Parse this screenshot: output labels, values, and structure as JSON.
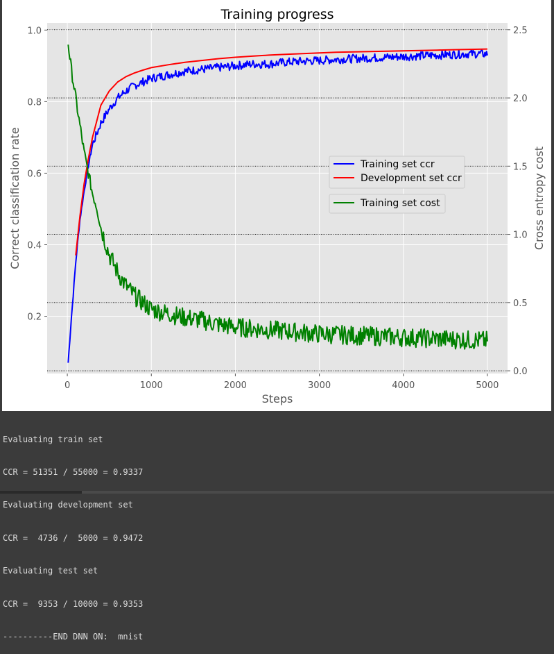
{
  "chart_data": {
    "type": "line",
    "title": "Training progress",
    "xlabel": "Steps",
    "ylabel_left": "Correct classification rate",
    "ylabel_right": "Cross entropy cost",
    "xlim": [
      -240,
      5240
    ],
    "ylim_left": [
      0.04,
      1.02
    ],
    "ylim_right": [
      -0.02,
      2.55
    ],
    "x_ticks": [
      0,
      1000,
      2000,
      3000,
      4000,
      5000
    ],
    "x_tick_labels": [
      "0",
      "1000",
      "2000",
      "3000",
      "4000",
      "5000"
    ],
    "y_left_ticks": [
      0.2,
      0.4,
      0.6,
      0.8,
      1.0
    ],
    "y_left_tick_labels": [
      "0.2",
      "0.4",
      "0.6",
      "0.8",
      "1.0"
    ],
    "y_right_ticks": [
      0.0,
      0.5,
      1.0,
      1.5,
      2.0,
      2.5
    ],
    "y_right_tick_labels": [
      "0.0",
      "0.5",
      "1.0",
      "1.5",
      "2.0",
      "2.5"
    ],
    "grid": true,
    "right_axis_dotted_grid": true,
    "legend_placement": "center-right",
    "series": [
      {
        "name": "Training set ccr",
        "axis": "left",
        "color": "#0000ff",
        "x": [
          10,
          50,
          100,
          150,
          200,
          250,
          300,
          400,
          500,
          600,
          700,
          800,
          900,
          1000,
          1200,
          1400,
          1600,
          1800,
          2000,
          2200,
          2400,
          2600,
          2800,
          3000,
          3200,
          3400,
          3600,
          3800,
          4000,
          4200,
          4400,
          4600,
          4800,
          5000
        ],
        "y": [
          0.07,
          0.2,
          0.35,
          0.47,
          0.55,
          0.62,
          0.68,
          0.74,
          0.78,
          0.81,
          0.83,
          0.845,
          0.855,
          0.865,
          0.875,
          0.885,
          0.89,
          0.895,
          0.9,
          0.905,
          0.905,
          0.91,
          0.913,
          0.915,
          0.918,
          0.92,
          0.922,
          0.924,
          0.926,
          0.928,
          0.93,
          0.932,
          0.934,
          0.933
        ]
      },
      {
        "name": "Development set ccr",
        "axis": "left",
        "color": "#ff0000",
        "x": [
          100,
          150,
          200,
          250,
          300,
          400,
          500,
          600,
          700,
          800,
          900,
          1000,
          1200,
          1400,
          1600,
          1800,
          2000,
          2200,
          2400,
          2600,
          2800,
          3000,
          3200,
          3400,
          3600,
          3800,
          4000,
          4200,
          4400,
          4600,
          4800,
          5000
        ],
        "y": [
          0.37,
          0.48,
          0.57,
          0.64,
          0.7,
          0.79,
          0.83,
          0.855,
          0.87,
          0.88,
          0.888,
          0.895,
          0.903,
          0.91,
          0.915,
          0.92,
          0.924,
          0.927,
          0.93,
          0.932,
          0.934,
          0.936,
          0.938,
          0.939,
          0.94,
          0.941,
          0.942,
          0.943,
          0.944,
          0.945,
          0.946,
          0.947
        ]
      },
      {
        "name": "Training set cost",
        "axis": "right",
        "color": "#008000",
        "x": [
          10,
          50,
          100,
          150,
          200,
          250,
          300,
          350,
          400,
          500,
          600,
          700,
          800,
          900,
          1000,
          1200,
          1400,
          1600,
          1800,
          2000,
          2200,
          2400,
          2600,
          2800,
          3000,
          3200,
          3400,
          3600,
          3800,
          4000,
          4200,
          4400,
          4600,
          4800,
          5000
        ],
        "y": [
          2.4,
          2.2,
          2.0,
          1.8,
          1.6,
          1.45,
          1.3,
          1.2,
          1.05,
          0.85,
          0.72,
          0.62,
          0.55,
          0.5,
          0.45,
          0.42,
          0.39,
          0.37,
          0.34,
          0.32,
          0.31,
          0.3,
          0.29,
          0.28,
          0.27,
          0.265,
          0.26,
          0.255,
          0.25,
          0.245,
          0.24,
          0.235,
          0.23,
          0.225,
          0.22
        ]
      }
    ]
  },
  "console": {
    "lines": [
      "Evaluating train set",
      "CCR = 51351 / 55000 = 0.9337",
      "Evaluating development set",
      "CCR =  4736 /  5000 = 0.9472",
      "Evaluating test set",
      "CCR =  9353 / 10000 = 0.9353",
      "----------END DNN ON:  mnist"
    ]
  }
}
